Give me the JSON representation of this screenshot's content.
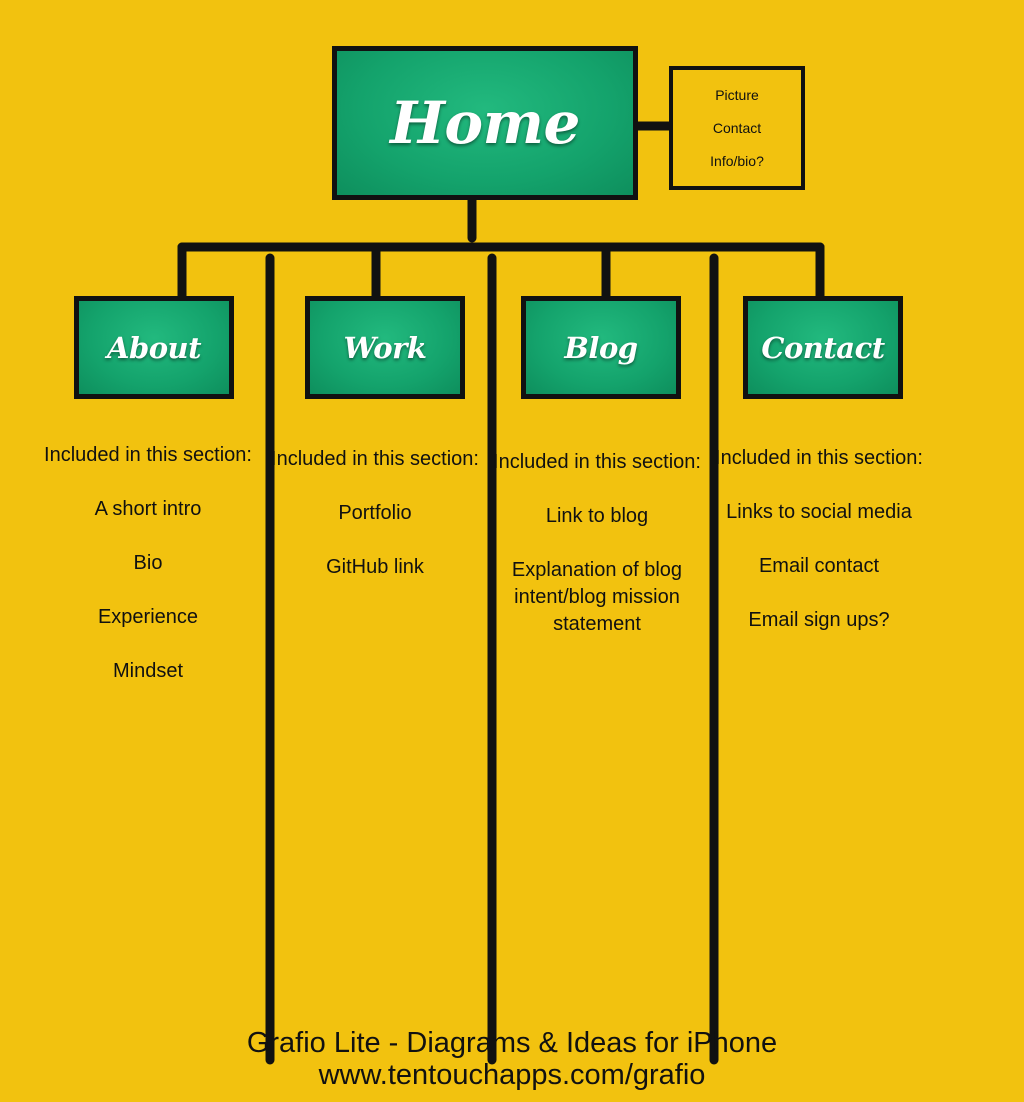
{
  "home": {
    "title": "Home",
    "side_items": [
      "Picture",
      "Contact",
      "Info/bio?"
    ]
  },
  "sections": [
    {
      "title": "About",
      "heading": "Included in this section:",
      "items": [
        "A short intro",
        "Bio",
        "Experience",
        "Mindset"
      ]
    },
    {
      "title": "Work",
      "heading": "Included in this section:",
      "items": [
        "Portfolio",
        "GitHub link"
      ]
    },
    {
      "title": "Blog",
      "heading": "Included in this section:",
      "items": [
        "Link to blog",
        "Explanation of blog intent/blog mission statement"
      ]
    },
    {
      "title": "Contact",
      "heading": "Included in this section:",
      "items": [
        "Links to social media",
        "Email contact",
        "Email sign ups?"
      ]
    }
  ],
  "footer": {
    "line1": "Grafio Lite - Diagrams & Ideas for iPhone",
    "line2": "www.tentouchapps.com/grafio"
  },
  "colors": {
    "background": "#F2C20F",
    "box_green": "#14A36C",
    "line": "#111111"
  }
}
